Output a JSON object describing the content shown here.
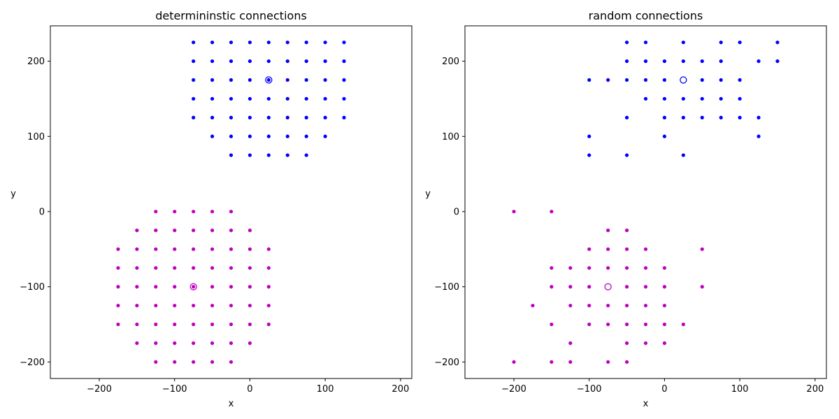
{
  "chart_data": [
    {
      "type": "scatter",
      "title": "determininstic connections",
      "xlabel": "x",
      "ylabel": "y",
      "xlim": [
        -265,
        215
      ],
      "ylim": [
        -222,
        247
      ],
      "xticks": [
        -200,
        -100,
        0,
        100,
        200
      ],
      "yticks": [
        -200,
        -100,
        0,
        100,
        200
      ],
      "grid": false,
      "series": [
        {
          "color": "#0000ff",
          "marker": "dot",
          "points": [
            [
              -75,
              225
            ],
            [
              -50,
              225
            ],
            [
              -25,
              225
            ],
            [
              0,
              225
            ],
            [
              25,
              225
            ],
            [
              50,
              225
            ],
            [
              75,
              225
            ],
            [
              100,
              225
            ],
            [
              125,
              225
            ],
            [
              -75,
              200
            ],
            [
              -50,
              200
            ],
            [
              -25,
              200
            ],
            [
              0,
              200
            ],
            [
              25,
              200
            ],
            [
              50,
              200
            ],
            [
              75,
              200
            ],
            [
              100,
              200
            ],
            [
              125,
              200
            ],
            [
              -75,
              175
            ],
            [
              -50,
              175
            ],
            [
              -25,
              175
            ],
            [
              0,
              175
            ],
            [
              25,
              175
            ],
            [
              50,
              175
            ],
            [
              75,
              175
            ],
            [
              100,
              175
            ],
            [
              125,
              175
            ],
            [
              -75,
              150
            ],
            [
              -50,
              150
            ],
            [
              -25,
              150
            ],
            [
              0,
              150
            ],
            [
              25,
              150
            ],
            [
              50,
              150
            ],
            [
              75,
              150
            ],
            [
              100,
              150
            ],
            [
              125,
              150
            ],
            [
              -75,
              125
            ],
            [
              -50,
              125
            ],
            [
              -25,
              125
            ],
            [
              0,
              125
            ],
            [
              25,
              125
            ],
            [
              50,
              125
            ],
            [
              75,
              125
            ],
            [
              100,
              125
            ],
            [
              125,
              125
            ],
            [
              -50,
              100
            ],
            [
              -25,
              100
            ],
            [
              0,
              100
            ],
            [
              25,
              100
            ],
            [
              50,
              100
            ],
            [
              75,
              100
            ],
            [
              100,
              100
            ],
            [
              -25,
              75
            ],
            [
              0,
              75
            ],
            [
              25,
              75
            ],
            [
              50,
              75
            ],
            [
              75,
              75
            ]
          ]
        },
        {
          "color": "#bf00bf",
          "marker": "dot",
          "points": [
            [
              -125,
              0
            ],
            [
              -100,
              0
            ],
            [
              -75,
              0
            ],
            [
              -50,
              0
            ],
            [
              -25,
              0
            ],
            [
              -150,
              -25
            ],
            [
              -125,
              -25
            ],
            [
              -100,
              -25
            ],
            [
              -75,
              -25
            ],
            [
              -50,
              -25
            ],
            [
              -25,
              -25
            ],
            [
              0,
              -25
            ],
            [
              -175,
              -50
            ],
            [
              -150,
              -50
            ],
            [
              -125,
              -50
            ],
            [
              -100,
              -50
            ],
            [
              -75,
              -50
            ],
            [
              -50,
              -50
            ],
            [
              -25,
              -50
            ],
            [
              0,
              -50
            ],
            [
              25,
              -50
            ],
            [
              -175,
              -75
            ],
            [
              -150,
              -75
            ],
            [
              -125,
              -75
            ],
            [
              -100,
              -75
            ],
            [
              -75,
              -75
            ],
            [
              -50,
              -75
            ],
            [
              -25,
              -75
            ],
            [
              0,
              -75
            ],
            [
              25,
              -75
            ],
            [
              -175,
              -100
            ],
            [
              -150,
              -100
            ],
            [
              -125,
              -100
            ],
            [
              -100,
              -100
            ],
            [
              -75,
              -100
            ],
            [
              -50,
              -100
            ],
            [
              -25,
              -100
            ],
            [
              0,
              -100
            ],
            [
              25,
              -100
            ],
            [
              -175,
              -125
            ],
            [
              -150,
              -125
            ],
            [
              -125,
              -125
            ],
            [
              -100,
              -125
            ],
            [
              -75,
              -125
            ],
            [
              -50,
              -125
            ],
            [
              -25,
              -125
            ],
            [
              0,
              -125
            ],
            [
              25,
              -125
            ],
            [
              -175,
              -150
            ],
            [
              -150,
              -150
            ],
            [
              -125,
              -150
            ],
            [
              -100,
              -150
            ],
            [
              -75,
              -150
            ],
            [
              -50,
              -150
            ],
            [
              -25,
              -150
            ],
            [
              0,
              -150
            ],
            [
              25,
              -150
            ],
            [
              -150,
              -175
            ],
            [
              -125,
              -175
            ],
            [
              -100,
              -175
            ],
            [
              -75,
              -175
            ],
            [
              -50,
              -175
            ],
            [
              -25,
              -175
            ],
            [
              0,
              -175
            ],
            [
              -125,
              -200
            ],
            [
              -100,
              -200
            ],
            [
              -75,
              -200
            ],
            [
              -50,
              -200
            ],
            [
              -25,
              -200
            ]
          ]
        }
      ],
      "centers": [
        {
          "x": 25,
          "y": 175,
          "color": "#0000ff"
        },
        {
          "x": -75,
          "y": -100,
          "color": "#bf00bf"
        }
      ]
    },
    {
      "type": "scatter",
      "title": "random connections",
      "xlabel": "x",
      "ylabel": "y",
      "xlim": [
        -265,
        215
      ],
      "ylim": [
        -222,
        247
      ],
      "xticks": [
        -200,
        -100,
        0,
        100,
        200
      ],
      "yticks": [
        -200,
        -100,
        0,
        100,
        200
      ],
      "grid": false,
      "series": [
        {
          "color": "#0000ff",
          "marker": "dot",
          "points": [
            [
              -50,
              225
            ],
            [
              -25,
              225
            ],
            [
              25,
              225
            ],
            [
              75,
              225
            ],
            [
              100,
              225
            ],
            [
              150,
              225
            ],
            [
              -50,
              200
            ],
            [
              -25,
              200
            ],
            [
              0,
              200
            ],
            [
              25,
              200
            ],
            [
              50,
              200
            ],
            [
              75,
              200
            ],
            [
              125,
              200
            ],
            [
              150,
              200
            ],
            [
              -100,
              175
            ],
            [
              -75,
              175
            ],
            [
              -50,
              175
            ],
            [
              -25,
              175
            ],
            [
              0,
              175
            ],
            [
              50,
              175
            ],
            [
              75,
              175
            ],
            [
              100,
              175
            ],
            [
              -25,
              150
            ],
            [
              0,
              150
            ],
            [
              25,
              150
            ],
            [
              50,
              150
            ],
            [
              75,
              150
            ],
            [
              100,
              150
            ],
            [
              -50,
              125
            ],
            [
              0,
              125
            ],
            [
              25,
              125
            ],
            [
              50,
              125
            ],
            [
              75,
              125
            ],
            [
              100,
              125
            ],
            [
              125,
              125
            ],
            [
              -100,
              100
            ],
            [
              0,
              100
            ],
            [
              125,
              100
            ],
            [
              -100,
              75
            ],
            [
              -50,
              75
            ],
            [
              25,
              75
            ]
          ]
        },
        {
          "color": "#bf00bf",
          "marker": "dot",
          "points": [
            [
              -200,
              0
            ],
            [
              -150,
              0
            ],
            [
              -75,
              -25
            ],
            [
              -50,
              -25
            ],
            [
              -100,
              -50
            ],
            [
              -75,
              -50
            ],
            [
              -50,
              -50
            ],
            [
              -25,
              -50
            ],
            [
              50,
              -50
            ],
            [
              -150,
              -75
            ],
            [
              -125,
              -75
            ],
            [
              -100,
              -75
            ],
            [
              -75,
              -75
            ],
            [
              -50,
              -75
            ],
            [
              -25,
              -75
            ],
            [
              0,
              -75
            ],
            [
              -150,
              -100
            ],
            [
              -125,
              -100
            ],
            [
              -100,
              -100
            ],
            [
              -50,
              -100
            ],
            [
              -25,
              -100
            ],
            [
              0,
              -100
            ],
            [
              50,
              -100
            ],
            [
              -175,
              -125
            ],
            [
              -125,
              -125
            ],
            [
              -100,
              -125
            ],
            [
              -75,
              -125
            ],
            [
              -50,
              -125
            ],
            [
              -25,
              -125
            ],
            [
              0,
              -125
            ],
            [
              -150,
              -150
            ],
            [
              -100,
              -150
            ],
            [
              -75,
              -150
            ],
            [
              -50,
              -150
            ],
            [
              -25,
              -150
            ],
            [
              0,
              -150
            ],
            [
              25,
              -150
            ],
            [
              -125,
              -175
            ],
            [
              -50,
              -175
            ],
            [
              -25,
              -175
            ],
            [
              0,
              -175
            ],
            [
              -200,
              -200
            ],
            [
              -150,
              -200
            ],
            [
              -125,
              -200
            ],
            [
              -75,
              -200
            ],
            [
              -50,
              -200
            ]
          ]
        }
      ],
      "centers": [
        {
          "x": 25,
          "y": 175,
          "color": "#0000ff"
        },
        {
          "x": -75,
          "y": -100,
          "color": "#bf00bf"
        }
      ]
    }
  ]
}
